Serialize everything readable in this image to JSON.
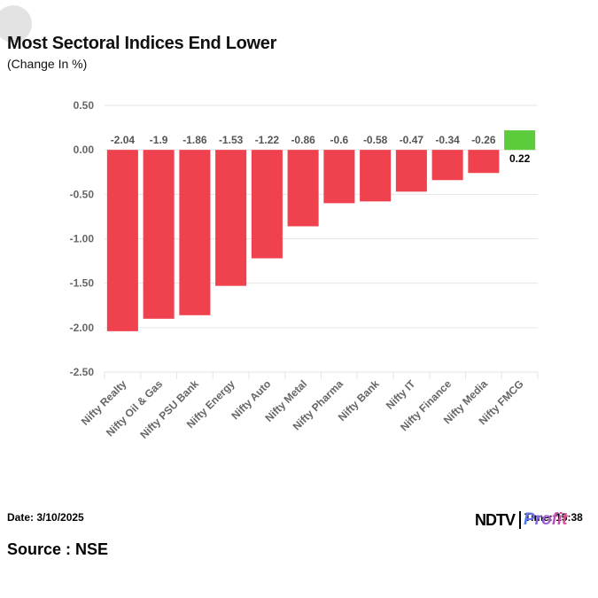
{
  "header": {
    "title": "Most Sectoral Indices End Lower",
    "subtitle": "(Change In %)"
  },
  "footer": {
    "date": "Date: 3/10/2025",
    "time": "Time: 15:38",
    "source": "Source : NSE",
    "logo_text_1": "NDTV",
    "logo_text_2": "Profit"
  },
  "colors": {
    "negative": "#f0424e",
    "positive": "#5ccc3c",
    "grid": "#e6e6e6",
    "axis_text": "#666666",
    "label_negative": "#555555",
    "label_positive": "#000000"
  },
  "chart_data": {
    "type": "bar",
    "categories": [
      "Nifty Realty",
      "Nifty Oil & Gas",
      "Nifty PSU Bank",
      "Nifty Energy",
      "Nifty Auto",
      "Nifty Metal",
      "Nifty Pharma",
      "Nifty Bank",
      "Nifty IT",
      "Nifty Finance",
      "Nifty Media",
      "Nifty FMCG"
    ],
    "values": [
      -2.04,
      -1.9,
      -1.86,
      -1.53,
      -1.22,
      -0.86,
      -0.6,
      -0.58,
      -0.47,
      -0.34,
      -0.26,
      0.22
    ],
    "data_labels": [
      "-2.04",
      "-1.9",
      "-1.86",
      "-1.53",
      "-1.22",
      "-0.86",
      "-0.6",
      "-0.58",
      "-0.47",
      "-0.34",
      "-0.26",
      "0.22"
    ],
    "yticks": [
      0.5,
      0,
      -0.5,
      -1,
      -1.5,
      -2,
      -2.5
    ],
    "ytick_labels": [
      "0.50",
      "0.00",
      "-0.50",
      "-1.00",
      "-1.50",
      "-2.00",
      "-2.50"
    ],
    "ylim": [
      -2.5,
      0.5
    ],
    "xlabel": "",
    "ylabel": "",
    "grid": true,
    "legend": "none"
  }
}
